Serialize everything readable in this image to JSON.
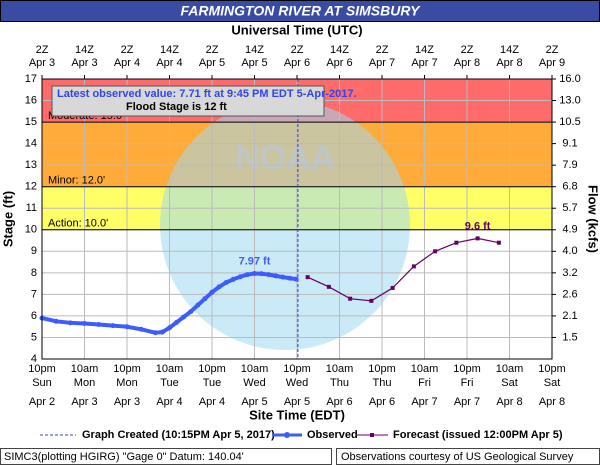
{
  "chart_data": {
    "type": "line",
    "title": "FARMINGTON RIVER AT SIMSBURY",
    "x2_title": "Universal Time (UTC)",
    "x_title": "Site Time (EDT)",
    "y_title": "Stage (ft)",
    "y2_title": "Flow (kcfs)",
    "xlim": [
      0,
      144
    ],
    "xticks": [
      {
        "value": 0,
        "label": "10pm",
        "day": "Sun",
        "date": "Apr 2"
      },
      {
        "value": 12,
        "label": "10am",
        "day": "Mon",
        "date": "Apr 3"
      },
      {
        "value": 24,
        "label": "10pm",
        "day": "Mon",
        "date": "Apr 3"
      },
      {
        "value": 36,
        "label": "10am",
        "day": "Tue",
        "date": "Apr 4"
      },
      {
        "value": 48,
        "label": "10pm",
        "day": "Tue",
        "date": "Apr 4"
      },
      {
        "value": 60,
        "label": "10am",
        "day": "Wed",
        "date": "Apr 5"
      },
      {
        "value": 72,
        "label": "10pm",
        "day": "Wed",
        "date": "Apr 5"
      },
      {
        "value": 84,
        "label": "10am",
        "day": "Thu",
        "date": "Apr 6"
      },
      {
        "value": 96,
        "label": "10pm",
        "day": "Thu",
        "date": "Apr 6"
      },
      {
        "value": 108,
        "label": "10am",
        "day": "Fri",
        "date": "Apr 7"
      },
      {
        "value": 120,
        "label": "10pm",
        "day": "Fri",
        "date": "Apr 7"
      },
      {
        "value": 132,
        "label": "10am",
        "day": "Sat",
        "date": "Apr 8"
      },
      {
        "value": 144,
        "label": "10pm",
        "day": "Sat",
        "date": "Apr 8"
      }
    ],
    "x2ticks": [
      {
        "value": 0,
        "label": "2Z",
        "date": "Apr 3"
      },
      {
        "value": 12,
        "label": "14Z",
        "date": "Apr 3"
      },
      {
        "value": 24,
        "label": "2Z",
        "date": "Apr 4"
      },
      {
        "value": 36,
        "label": "14Z",
        "date": "Apr 4"
      },
      {
        "value": 48,
        "label": "2Z",
        "date": "Apr 5"
      },
      {
        "value": 60,
        "label": "14Z",
        "date": "Apr 5"
      },
      {
        "value": 72,
        "label": "2Z",
        "date": "Apr 6"
      },
      {
        "value": 84,
        "label": "14Z",
        "date": "Apr 6"
      },
      {
        "value": 96,
        "label": "2Z",
        "date": "Apr 7"
      },
      {
        "value": 108,
        "label": "14Z",
        "date": "Apr 7"
      },
      {
        "value": 120,
        "label": "2Z",
        "date": "Apr 8"
      },
      {
        "value": 132,
        "label": "14Z",
        "date": "Apr 8"
      },
      {
        "value": 144,
        "label": "2Z",
        "date": "Apr 9"
      }
    ],
    "ylim": [
      4,
      17
    ],
    "yticks": [
      4,
      5,
      6,
      7,
      8,
      9,
      10,
      11,
      12,
      13,
      14,
      15,
      16,
      17
    ],
    "y2ticks": [
      {
        "value": 1.5,
        "label": "1.5"
      },
      {
        "value": 2.1,
        "label": "2.1"
      },
      {
        "value": 2.6,
        "label": "2.6"
      },
      {
        "value": 3.2,
        "label": "3.2"
      },
      {
        "value": 4,
        "label": "4.0"
      },
      {
        "value": 4.9,
        "label": "4.9"
      },
      {
        "value": 5.7,
        "label": "5.7"
      },
      {
        "value": 6.8,
        "label": "6.8"
      },
      {
        "value": 7.9,
        "label": "7.9"
      },
      {
        "value": 9.1,
        "label": "9.1"
      },
      {
        "value": 10.5,
        "label": "10.5"
      },
      {
        "value": 13,
        "label": "13.0"
      },
      {
        "value": 16,
        "label": "16.0"
      }
    ],
    "grid": true,
    "flood_categories": [
      {
        "name": "Action: 10.0'",
        "value": 10,
        "color": "#ffff66"
      },
      {
        "name": "Minor: 12.0'",
        "value": 12,
        "color": "#ffab3a"
      },
      {
        "name": "Moderate: 15.0'",
        "value": 15,
        "color": "#ff6a6a"
      }
    ],
    "series": [
      {
        "name": "Observed",
        "color": "#3d5cff",
        "x": [
          0,
          4,
          8,
          12,
          16,
          20,
          24,
          28,
          32,
          34,
          36,
          38,
          40,
          42,
          44,
          46,
          48,
          50,
          52,
          54,
          56,
          58,
          60,
          62,
          64,
          66,
          68,
          70,
          71.75
        ],
        "values": [
          5.9,
          5.75,
          5.68,
          5.65,
          5.6,
          5.55,
          5.5,
          5.38,
          5.22,
          5.25,
          5.45,
          5.7,
          5.95,
          6.2,
          6.5,
          6.8,
          7.1,
          7.35,
          7.55,
          7.7,
          7.82,
          7.92,
          7.97,
          7.96,
          7.92,
          7.86,
          7.8,
          7.75,
          7.71
        ]
      },
      {
        "name": "Forecast (issued 12:00PM Apr 5)",
        "color": "#660066",
        "x": [
          75,
          81,
          87,
          93,
          99,
          105,
          111,
          117,
          123,
          129
        ],
        "values": [
          7.8,
          7.35,
          6.8,
          6.7,
          7.3,
          8.3,
          9.0,
          9.4,
          9.6,
          9.4
        ]
      }
    ],
    "annotations": [
      {
        "label": "7.97 ft",
        "x": 60,
        "value": 7.97,
        "color": "#3d5cff"
      },
      {
        "label": "9.6 ft",
        "x": 123,
        "value": 9.6,
        "color": "#660066"
      }
    ],
    "graph_created": {
      "label": "Graph Created (10:15PM Apr 5, 2017)",
      "x": 72.25
    },
    "info": {
      "latest": "Latest observed value: 7.71 ft at 9:45 PM EDT 5-Apr-2017.",
      "flood_stage": "Flood Stage is 12 ft"
    },
    "footer": {
      "datum": "SIMC3(plotting HGIRG) \"Gage 0\" Datum: 140.04'",
      "credit": "Observations courtesy of US Geological Survey"
    },
    "watermark": "NOAA"
  }
}
